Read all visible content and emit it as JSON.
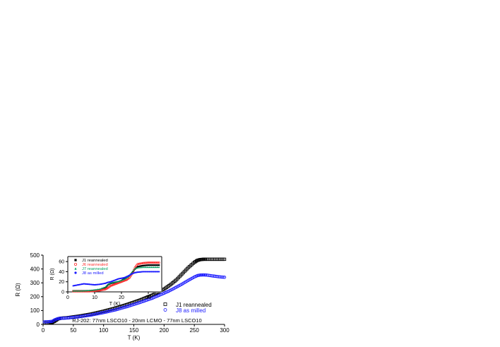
{
  "chart_data": [
    {
      "type": "scatter",
      "role": "main",
      "xlabel": "T (K)",
      "ylabel": "R (Ω)",
      "xlim": [
        0,
        300
      ],
      "ylim": [
        0,
        500
      ],
      "x_ticks": [
        0,
        50,
        100,
        150,
        200,
        250,
        300
      ],
      "y_ticks": [
        0,
        100,
        200,
        300,
        400,
        500
      ],
      "annotation": "RJ-202:  77nm LSCO10 - 20nm LCMO - 77nm LSCO10",
      "legend_position": "lower-right",
      "series": [
        {
          "name": "J1  reannealed",
          "marker": "square-open",
          "color": "#000000",
          "x": [
            2,
            10,
            15,
            20,
            25,
            30,
            40,
            60,
            80,
            100,
            120,
            140,
            160,
            180,
            200,
            210,
            220,
            230,
            240,
            250,
            255,
            260,
            265,
            270,
            280,
            290,
            300
          ],
          "y": [
            10,
            10,
            14,
            25,
            40,
            45,
            48,
            60,
            75,
            95,
            118,
            145,
            175,
            210,
            255,
            285,
            320,
            365,
            410,
            448,
            462,
            468,
            470,
            470,
            470,
            470,
            470
          ]
        },
        {
          "name": "J8  as milled",
          "marker": "circle-open",
          "color": "#1a1aff",
          "x": [
            2,
            10,
            15,
            20,
            25,
            30,
            40,
            60,
            80,
            100,
            120,
            140,
            160,
            180,
            200,
            210,
            220,
            230,
            240,
            250,
            255,
            260,
            265,
            270,
            280,
            290,
            300
          ],
          "y": [
            18,
            20,
            22,
            35,
            42,
            44,
            46,
            55,
            68,
            85,
            105,
            130,
            158,
            188,
            225,
            245,
            268,
            292,
            318,
            342,
            352,
            356,
            357,
            356,
            350,
            344,
            340
          ]
        }
      ]
    },
    {
      "type": "scatter",
      "role": "inset",
      "xlabel": "T (K)",
      "ylabel": "R (Ω)",
      "xlim": [
        0,
        35
      ],
      "ylim": [
        0,
        70
      ],
      "x_ticks": [
        0,
        10,
        20,
        30
      ],
      "y_ticks": [
        0,
        20,
        40,
        60
      ],
      "legend_position": "top-left",
      "series": [
        {
          "name": "J1 reannealed",
          "marker": "square-filled",
          "color": "#000000",
          "x": [
            2,
            5,
            8,
            10,
            12,
            14,
            15,
            16,
            17,
            18,
            19,
            20,
            21,
            22,
            23,
            24,
            25,
            26,
            28,
            30,
            32,
            34
          ],
          "y": [
            2,
            2,
            2,
            3,
            4,
            8,
            14,
            17,
            18,
            19,
            20,
            22,
            26,
            30,
            32,
            38,
            45,
            50,
            52,
            53,
            53,
            53
          ]
        },
        {
          "name": "J6 reannealed",
          "marker": "circle-open",
          "color": "#ff3030",
          "x": [
            2,
            5,
            8,
            10,
            12,
            14,
            15,
            16,
            17,
            18,
            19,
            20,
            21,
            22,
            23,
            24,
            25,
            26,
            28,
            30,
            32,
            34
          ],
          "y": [
            1,
            1,
            1,
            2,
            3,
            5,
            8,
            12,
            14,
            16,
            18,
            20,
            22,
            24,
            28,
            36,
            48,
            55,
            57,
            58,
            58,
            58
          ]
        },
        {
          "name": "J7 reannealed",
          "marker": "triangle-filled",
          "color": "#00a060",
          "x": [
            2,
            5,
            8,
            10,
            12,
            14,
            15,
            16,
            17,
            18,
            19,
            20,
            21,
            22,
            23,
            24,
            25,
            26,
            28,
            30,
            32,
            34
          ],
          "y": [
            2,
            2,
            3,
            4,
            6,
            10,
            15,
            18,
            19,
            20,
            21,
            23,
            25,
            28,
            32,
            40,
            46,
            48,
            49,
            49,
            49,
            49
          ]
        },
        {
          "name": "J8  as milled",
          "marker": "circle-filled",
          "color": "#1a1aff",
          "x": [
            2,
            4,
            6,
            8,
            10,
            12,
            14,
            15,
            16,
            17,
            18,
            19,
            20,
            21,
            22,
            23,
            24,
            25,
            26,
            28,
            30,
            32,
            34
          ],
          "y": [
            12,
            14,
            16,
            15,
            14,
            15,
            17,
            19,
            20,
            22,
            24,
            26,
            27,
            28,
            30,
            33,
            36,
            38,
            39,
            40,
            40,
            40,
            40
          ]
        }
      ]
    }
  ]
}
